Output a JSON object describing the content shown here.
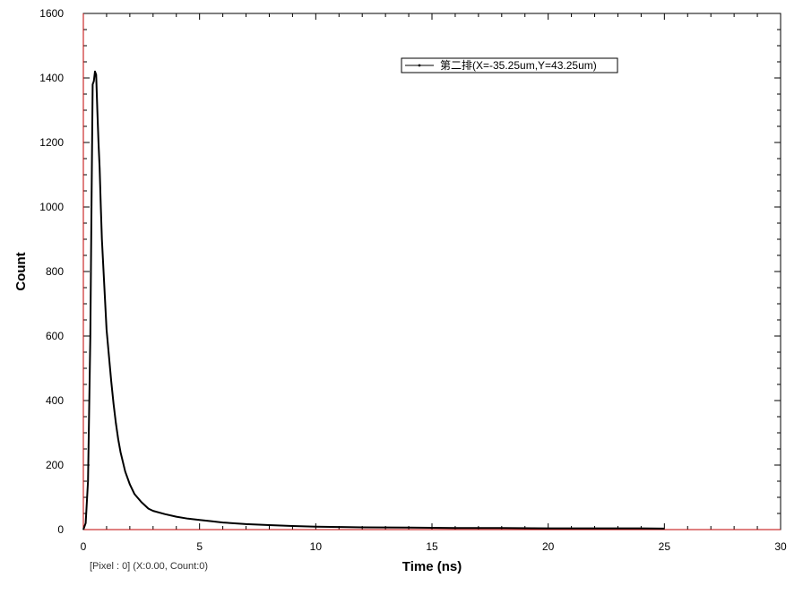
{
  "chart_data": {
    "type": "line",
    "title": "",
    "xlabel": "Time (ns)",
    "ylabel": "Count",
    "xlim": [
      0,
      30
    ],
    "ylim": [
      0,
      1600
    ],
    "xticks": [
      0,
      5,
      10,
      15,
      20,
      25,
      30
    ],
    "yticks": [
      0,
      200,
      400,
      600,
      800,
      1000,
      1200,
      1400,
      1600
    ],
    "grid": false,
    "legend": {
      "position": "top-right"
    },
    "line_color": "#000000",
    "axis_color": "#c00000",
    "series": [
      {
        "name": "第二排(X=-35.25um,Y=43.25um)",
        "x": [
          0,
          0.1,
          0.2,
          0.3,
          0.35,
          0.4,
          0.45,
          0.5,
          0.55,
          0.6,
          0.65,
          0.7,
          0.75,
          0.8,
          0.9,
          1.0,
          1.1,
          1.2,
          1.3,
          1.4,
          1.5,
          1.6,
          1.8,
          2.0,
          2.2,
          2.5,
          2.8,
          3.0,
          3.5,
          4.0,
          4.5,
          5.0,
          5.5,
          6.0,
          7.0,
          8.0,
          9.0,
          10.0,
          11.0,
          12.0,
          14.0,
          16.0,
          18.0,
          20.0,
          22.0,
          24.0,
          25.0
        ],
        "y": [
          0,
          20,
          150,
          600,
          1000,
          1380,
          1390,
          1420,
          1410,
          1300,
          1200,
          1120,
          1000,
          900,
          760,
          620,
          540,
          460,
          390,
          330,
          280,
          240,
          180,
          140,
          110,
          85,
          65,
          58,
          48,
          40,
          34,
          30,
          26,
          22,
          17,
          14,
          11,
          9,
          8,
          7,
          6,
          5,
          5,
          4,
          4,
          4,
          3
        ]
      }
    ]
  },
  "status_text": "[Pixel : 0] (X:0.00, Count:0)"
}
